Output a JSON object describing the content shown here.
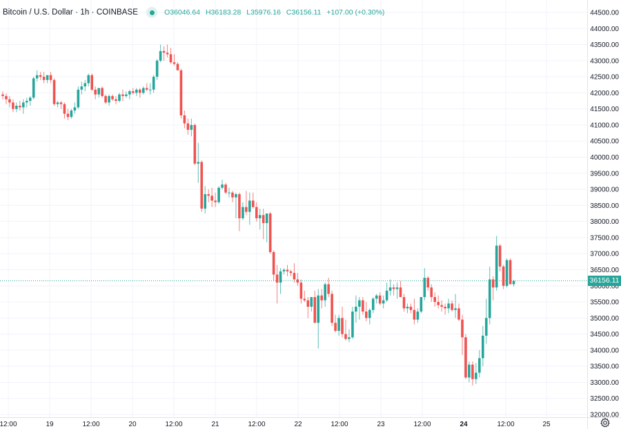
{
  "header": {
    "symbol_title": "Bitcoin / U.S. Dollar · 1h · COINBASE",
    "status_icon": "market-open-dot",
    "ohlc": {
      "open_label": "O",
      "open": "36046.64",
      "high_label": "H",
      "high": "36183.28",
      "low_label": "L",
      "low": "35976.16",
      "close_label": "C",
      "close": "36156.11",
      "change": "+107.00 (+0.30%)"
    }
  },
  "colors": {
    "up": "#26a69a",
    "down": "#ef5350",
    "grid": "#f0f3fa",
    "axis_text": "#131722",
    "last_price_line": "#26a69a"
  },
  "price_tag": "36156.11",
  "settings_icon": "gear-icon",
  "chart_data": {
    "type": "candlestick",
    "title": "Bitcoin / U.S. Dollar · 1h · COINBASE",
    "interval": "1h",
    "xlabel": "",
    "ylabel": "",
    "ylim": [
      32000,
      44500
    ],
    "grid": true,
    "y_ticks": [
      "44500.00",
      "44000.00",
      "43500.00",
      "43000.00",
      "42500.00",
      "42000.00",
      "41500.00",
      "41000.00",
      "40500.00",
      "40000.00",
      "39500.00",
      "39000.00",
      "38500.00",
      "38000.00",
      "37500.00",
      "37000.00",
      "36500.00",
      "36000.00",
      "35500.00",
      "35000.00",
      "34500.00",
      "34000.00",
      "33500.00",
      "33000.00",
      "32500.00",
      "32000.00"
    ],
    "x_ticks": [
      {
        "label": "12:00",
        "x": 12,
        "bold": false
      },
      {
        "label": "19",
        "x": 72,
        "bold": false
      },
      {
        "label": "12:00",
        "x": 132,
        "bold": false
      },
      {
        "label": "20",
        "x": 192,
        "bold": false
      },
      {
        "label": "12:00",
        "x": 252,
        "bold": false
      },
      {
        "label": "21",
        "x": 312,
        "bold": false
      },
      {
        "label": "12:00",
        "x": 372,
        "bold": false
      },
      {
        "label": "22",
        "x": 432,
        "bold": false
      },
      {
        "label": "12:00",
        "x": 492,
        "bold": false
      },
      {
        "label": "23",
        "x": 552,
        "bold": false
      },
      {
        "label": "12:00",
        "x": 612,
        "bold": false
      },
      {
        "label": "24",
        "x": 672,
        "bold": true
      },
      {
        "label": "12:00",
        "x": 733,
        "bold": false
      },
      {
        "label": "25",
        "x": 792,
        "bold": false
      }
    ],
    "last_price": 36156.11,
    "first_candle_x": 4,
    "candle_spacing": 4.97,
    "candles_ohlc": [
      [
        41950,
        42050,
        41800,
        41900
      ],
      [
        41900,
        41980,
        41650,
        41800
      ],
      [
        41800,
        41900,
        41550,
        41700
      ],
      [
        41700,
        41800,
        41400,
        41500
      ],
      [
        41500,
        41700,
        41400,
        41600
      ],
      [
        41600,
        41750,
        41450,
        41550
      ],
      [
        41550,
        41800,
        41350,
        41700
      ],
      [
        41700,
        41850,
        41550,
        41750
      ],
      [
        41750,
        41900,
        41600,
        41850
      ],
      [
        41850,
        42500,
        41800,
        42450
      ],
      [
        42450,
        42700,
        42350,
        42550
      ],
      [
        42550,
        42650,
        42400,
        42500
      ],
      [
        42500,
        42650,
        42300,
        42400
      ],
      [
        42400,
        42550,
        42300,
        42550
      ],
      [
        42550,
        42650,
        42300,
        42400
      ],
      [
        42400,
        42450,
        41600,
        41650
      ],
      [
        41650,
        41750,
        41550,
        41700
      ],
      [
        41700,
        41750,
        41500,
        41650
      ],
      [
        41650,
        41700,
        41200,
        41350
      ],
      [
        41350,
        41500,
        41150,
        41250
      ],
      [
        41250,
        41500,
        41200,
        41450
      ],
      [
        41450,
        41700,
        41350,
        41550
      ],
      [
        41550,
        42200,
        41500,
        42100
      ],
      [
        42100,
        42350,
        41950,
        42200
      ],
      [
        42200,
        42400,
        42050,
        42300
      ],
      [
        42300,
        42600,
        42200,
        42550
      ],
      [
        42550,
        42600,
        42050,
        42100
      ],
      [
        42100,
        42200,
        41800,
        41950
      ],
      [
        41950,
        42150,
        41850,
        42150
      ],
      [
        42150,
        42200,
        41850,
        41900
      ],
      [
        41900,
        41950,
        41650,
        41700
      ],
      [
        41700,
        41950,
        41600,
        41900
      ],
      [
        41900,
        41950,
        41750,
        41800
      ],
      [
        41800,
        41900,
        41650,
        41750
      ],
      [
        41750,
        42000,
        41700,
        41950
      ],
      [
        41950,
        42100,
        41750,
        41900
      ],
      [
        41900,
        42050,
        41850,
        41950
      ],
      [
        41950,
        42100,
        41800,
        42050
      ],
      [
        42050,
        42150,
        41950,
        42000
      ],
      [
        42000,
        42150,
        41900,
        42100
      ],
      [
        42100,
        42150,
        41850,
        42000
      ],
      [
        42000,
        42200,
        41950,
        42150
      ],
      [
        42150,
        42300,
        42050,
        42100
      ],
      [
        42100,
        42300,
        41950,
        42100
      ],
      [
        42100,
        42550,
        42000,
        42500
      ],
      [
        42500,
        43050,
        42400,
        43000
      ],
      [
        43000,
        43500,
        42950,
        43300
      ],
      [
        43300,
        43450,
        43000,
        43250
      ],
      [
        43250,
        43500,
        43100,
        43200
      ],
      [
        43200,
        43400,
        42900,
        42950
      ],
      [
        42950,
        43200,
        42850,
        42900
      ],
      [
        42900,
        42950,
        42700,
        42700
      ],
      [
        42700,
        42750,
        41200,
        41300
      ],
      [
        41300,
        41450,
        40900,
        41050
      ],
      [
        41050,
        41200,
        40700,
        40850
      ],
      [
        40850,
        41200,
        40650,
        41000
      ],
      [
        41000,
        41050,
        39750,
        39800
      ],
      [
        39800,
        40450,
        39200,
        39850
      ],
      [
        39850,
        39900,
        38300,
        38400
      ],
      [
        38400,
        39100,
        38250,
        38850
      ],
      [
        38850,
        39000,
        38600,
        38800
      ],
      [
        38800,
        39050,
        38450,
        38650
      ],
      [
        38650,
        38900,
        38450,
        38600
      ],
      [
        38600,
        39100,
        38550,
        39050
      ],
      [
        39050,
        39300,
        39000,
        39150
      ],
      [
        39150,
        39200,
        38850,
        38900
      ],
      [
        38900,
        39050,
        38750,
        38900
      ],
      [
        38900,
        38950,
        38600,
        38750
      ],
      [
        38750,
        38900,
        38100,
        38850
      ],
      [
        38850,
        38900,
        37700,
        38100
      ],
      [
        38100,
        38600,
        38050,
        38450
      ],
      [
        38450,
        38950,
        38200,
        38300
      ],
      [
        38300,
        38900,
        37900,
        38650
      ],
      [
        38650,
        38900,
        38400,
        38450
      ],
      [
        38450,
        38600,
        38000,
        38100
      ],
      [
        38100,
        38400,
        37750,
        38200
      ],
      [
        38200,
        38400,
        37450,
        37950
      ],
      [
        37950,
        38150,
        37350,
        38250
      ],
      [
        38250,
        38300,
        37000,
        37050
      ],
      [
        37050,
        37100,
        36150,
        36350
      ],
      [
        36350,
        36650,
        35450,
        36100
      ],
      [
        36100,
        36550,
        35750,
        36450
      ],
      [
        36450,
        36550,
        36350,
        36500
      ],
      [
        36500,
        36650,
        36300,
        36450
      ],
      [
        36450,
        36500,
        36300,
        36400
      ],
      [
        36400,
        36700,
        36100,
        36200
      ],
      [
        36200,
        36400,
        36000,
        36100
      ],
      [
        36100,
        36200,
        35450,
        35600
      ],
      [
        35600,
        35850,
        35500,
        35550
      ],
      [
        35550,
        35650,
        35000,
        35350
      ],
      [
        35350,
        35650,
        35200,
        35650
      ],
      [
        35650,
        35850,
        34850,
        34850
      ],
      [
        34850,
        35900,
        34050,
        35700
      ],
      [
        35700,
        35900,
        35300,
        35550
      ],
      [
        35550,
        36100,
        35350,
        36050
      ],
      [
        36050,
        36250,
        35650,
        35750
      ],
      [
        35750,
        35850,
        34750,
        34850
      ],
      [
        34850,
        35100,
        34550,
        34600
      ],
      [
        34600,
        35100,
        34450,
        35000
      ],
      [
        35000,
        35350,
        34400,
        34500
      ],
      [
        34500,
        34950,
        34300,
        34350
      ],
      [
        34350,
        34650,
        34250,
        34400
      ],
      [
        34400,
        35350,
        34350,
        35200
      ],
      [
        35200,
        35700,
        34850,
        35350
      ],
      [
        35350,
        35650,
        34950,
        35550
      ],
      [
        35550,
        35650,
        35100,
        35200
      ],
      [
        35200,
        35500,
        34900,
        35000
      ],
      [
        35000,
        35300,
        34800,
        35250
      ],
      [
        35250,
        35650,
        35150,
        35600
      ],
      [
        35600,
        35750,
        35450,
        35700
      ],
      [
        35700,
        35800,
        35400,
        35450
      ],
      [
        35450,
        35700,
        35300,
        35550
      ],
      [
        35550,
        36100,
        35500,
        35850
      ],
      [
        35850,
        36200,
        35700,
        35950
      ],
      [
        35950,
        36050,
        35700,
        35900
      ],
      [
        35900,
        36100,
        35600,
        35950
      ],
      [
        35950,
        36150,
        35650,
        35650
      ],
      [
        35650,
        35750,
        35200,
        35300
      ],
      [
        35300,
        35450,
        35150,
        35350
      ],
      [
        35350,
        35450,
        35150,
        35250
      ],
      [
        35250,
        35600,
        34800,
        34950
      ],
      [
        34950,
        35300,
        34850,
        35200
      ],
      [
        35200,
        35650,
        35150,
        35650
      ],
      [
        35650,
        36550,
        35550,
        36250
      ],
      [
        36250,
        36300,
        35850,
        35950
      ],
      [
        35950,
        36050,
        35500,
        35650
      ],
      [
        35650,
        35800,
        35350,
        35500
      ],
      [
        35500,
        35700,
        35300,
        35400
      ],
      [
        35400,
        35550,
        35200,
        35350
      ],
      [
        35350,
        35450,
        35100,
        35300
      ],
      [
        35300,
        35600,
        35150,
        35450
      ],
      [
        35450,
        35550,
        35200,
        35250
      ],
      [
        35250,
        35750,
        35000,
        35300
      ],
      [
        35300,
        35450,
        34900,
        34950
      ],
      [
        34950,
        35100,
        33850,
        34400
      ],
      [
        34400,
        34500,
        33100,
        33150
      ],
      [
        33150,
        33650,
        33000,
        33550
      ],
      [
        33550,
        33650,
        32900,
        33100
      ],
      [
        33100,
        33600,
        32950,
        33300
      ],
      [
        33300,
        34000,
        33150,
        33750
      ],
      [
        33750,
        34750,
        33500,
        34450
      ],
      [
        34450,
        35600,
        34200,
        35000
      ],
      [
        35000,
        36600,
        34800,
        36200
      ],
      [
        36200,
        36300,
        35550,
        35950
      ],
      [
        35950,
        37550,
        35850,
        37250
      ],
      [
        37250,
        37300,
        36450,
        36600
      ],
      [
        36600,
        36650,
        35900,
        36000
      ],
      [
        36000,
        36850,
        35950,
        36800
      ],
      [
        36800,
        36850,
        36050,
        36050
      ],
      [
        36050,
        36190,
        35980,
        36156
      ]
    ]
  }
}
